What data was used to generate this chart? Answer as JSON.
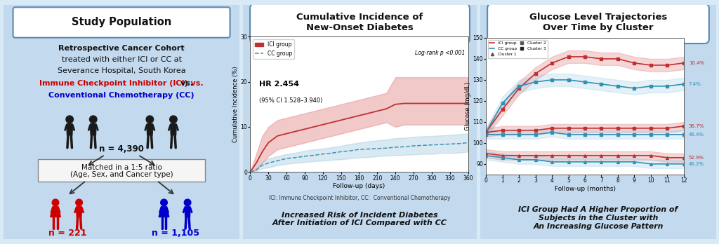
{
  "panel_bg": "#c2d9ee",
  "panel_border": "#7aaac8",
  "title_box_bg": "#ffffff",
  "title_box_border": "#5a8ab0",
  "fig_bg": "#d8eaf6",
  "panel1": {
    "title": "Study Population",
    "line1": "Retrospective Cancer Cohort",
    "line2": "treated with either ICI or CC at",
    "line3": "Severance Hospital, South Korea",
    "ici_label": "Immune Checkpoint Inhibitor (ICI) vs.",
    "cc_label": "Conventional Chemotherapy (CC)",
    "n_total": "n = 4,390",
    "match_line1": "Matched in a 1:5 ratio",
    "match_line2": "(Age, Sex, and Cancer type)",
    "n_ici": "n = 221",
    "n_cc": "n = 1,105",
    "ici_color": "#cc0000",
    "cc_color": "#0000cc",
    "black_color": "#111111"
  },
  "panel2": {
    "title": "Cumulative Incidence of\nNew-Onset Diabetes",
    "xlabel": "Follow-up (days)",
    "ylabel": "Cumulative Incidence (%)",
    "logrank_text": "Log-rank p <0.001",
    "hr_text": "HR 2.454",
    "ci_text": "(95% CI 1.528–3.940)",
    "ici_label": "ICI group",
    "cc_label": "CC group",
    "xticks": [
      0,
      30,
      60,
      90,
      120,
      150,
      180,
      210,
      240,
      270,
      300,
      330,
      360
    ],
    "ylim": [
      0,
      30
    ],
    "yticks": [
      0,
      10,
      20,
      30
    ],
    "ici_x": [
      0,
      10,
      20,
      30,
      45,
      60,
      75,
      90,
      105,
      120,
      135,
      150,
      165,
      180,
      195,
      210,
      225,
      240,
      255,
      270,
      285,
      300,
      315,
      330,
      345,
      360
    ],
    "ici_y": [
      0,
      2,
      4.5,
      6.5,
      8,
      8.5,
      9,
      9.5,
      10,
      10.5,
      11,
      11.5,
      12,
      12.5,
      13,
      13.5,
      14,
      15,
      15.2,
      15.2,
      15.2,
      15.2,
      15.2,
      15.2,
      15.2,
      15.2
    ],
    "ici_lo": [
      0,
      0.5,
      2,
      3.5,
      5,
      5.5,
      6,
      6.5,
      7,
      7.5,
      8,
      8.5,
      9,
      9.5,
      10,
      10.5,
      11,
      10,
      10.5,
      10.5,
      10.5,
      10.5,
      10.5,
      10.5,
      10.5,
      10.5
    ],
    "ici_hi": [
      0,
      4,
      8,
      10,
      11.5,
      12,
      12.5,
      13,
      13.5,
      14,
      14.5,
      15,
      15.5,
      16,
      16.5,
      17,
      17.5,
      21,
      21,
      21,
      21,
      21,
      21,
      21,
      21,
      21
    ],
    "cc_x": [
      0,
      10,
      20,
      30,
      45,
      60,
      75,
      90,
      105,
      120,
      135,
      150,
      165,
      180,
      195,
      210,
      225,
      240,
      255,
      270,
      285,
      300,
      315,
      330,
      345,
      360
    ],
    "cc_y": [
      0,
      0.5,
      1.5,
      2,
      2.5,
      3,
      3.2,
      3.5,
      3.7,
      4,
      4.2,
      4.5,
      4.7,
      5,
      5.1,
      5.2,
      5.3,
      5.5,
      5.6,
      5.8,
      5.9,
      6,
      6.1,
      6.2,
      6.3,
      6.5
    ],
    "cc_lo": [
      0,
      0.2,
      0.8,
      1,
      1.5,
      1.8,
      2,
      2.2,
      2.4,
      2.5,
      2.7,
      2.8,
      3,
      3.2,
      3.3,
      3.5,
      3.6,
      3.7,
      3.8,
      3.9,
      4,
      4,
      4.2,
      4.2,
      4.3,
      4.5
    ],
    "cc_hi": [
      0,
      0.8,
      2.2,
      3,
      3.5,
      4,
      4.3,
      4.7,
      5,
      5.2,
      5.5,
      5.8,
      6.2,
      6.5,
      6.8,
      7,
      7.2,
      7.5,
      7.6,
      7.8,
      7.9,
      8,
      8.1,
      8.2,
      8.4,
      8.5
    ],
    "ici_color": "#e07878",
    "cc_color": "#90c0d8",
    "footnote": "ICI: Immune Checkpoint Inhibitor, CC:  Conventional Chemotherapy",
    "bottom_text": "Increased Risk of Incident Diabetes\nAfter Initiation of ICI Compared with CC"
  },
  "panel3": {
    "title": "Glucose Level Trajectories\nOver Time by Cluster",
    "xlabel": "Follow-up (months)",
    "ylabel": "Glucose (mg/dL)",
    "xticks": [
      0,
      1,
      2,
      3,
      4,
      5,
      6,
      7,
      8,
      9,
      10,
      11,
      12
    ],
    "ylim": [
      85,
      150
    ],
    "yticks": [
      90,
      100,
      110,
      120,
      130,
      140,
      150
    ],
    "x": [
      0,
      1,
      2,
      3,
      4,
      5,
      6,
      7,
      8,
      9,
      10,
      11,
      12
    ],
    "ici_c1_y": [
      105,
      116,
      126,
      133,
      138,
      141,
      141,
      140,
      140,
      138,
      137,
      137,
      138
    ],
    "ici_c1_lo": [
      103,
      113,
      123,
      130,
      135,
      138,
      138,
      137,
      137,
      135,
      134,
      134,
      135
    ],
    "ici_c1_hi": [
      107,
      119,
      129,
      136,
      141,
      144,
      144,
      143,
      143,
      141,
      140,
      140,
      141
    ],
    "cc_c1_y": [
      105,
      119,
      127,
      129,
      130,
      130,
      129,
      128,
      127,
      126,
      127,
      127,
      128
    ],
    "cc_c1_lo": [
      103,
      116,
      124,
      126,
      127,
      127,
      126,
      125,
      124,
      123,
      124,
      124,
      125
    ],
    "cc_c1_hi": [
      107,
      122,
      130,
      132,
      133,
      133,
      132,
      131,
      130,
      129,
      130,
      130,
      131
    ],
    "ici_c2_y": [
      105,
      106,
      106,
      106,
      107,
      107,
      107,
      107,
      107,
      107,
      107,
      107,
      108
    ],
    "ici_c2_lo": [
      103,
      104,
      104,
      104,
      105,
      105,
      105,
      105,
      105,
      105,
      105,
      105,
      106
    ],
    "ici_c2_hi": [
      107,
      108,
      108,
      108,
      109,
      109,
      109,
      109,
      109,
      109,
      109,
      109,
      110
    ],
    "cc_c2_y": [
      104,
      104,
      104,
      104,
      105,
      104,
      104,
      104,
      104,
      104,
      104,
      104,
      104
    ],
    "cc_c2_lo": [
      102,
      102,
      102,
      102,
      103,
      102,
      102,
      102,
      102,
      102,
      102,
      102,
      102
    ],
    "cc_c2_hi": [
      106,
      106,
      106,
      106,
      107,
      106,
      106,
      106,
      106,
      106,
      106,
      106,
      106
    ],
    "ici_c3_y": [
      95,
      94,
      94,
      94,
      94,
      94,
      94,
      94,
      94,
      94,
      94,
      93,
      93
    ],
    "ici_c3_lo": [
      93,
      92,
      92,
      92,
      92,
      92,
      92,
      92,
      92,
      92,
      92,
      91,
      91
    ],
    "ici_c3_hi": [
      97,
      96,
      96,
      96,
      96,
      96,
      96,
      96,
      96,
      96,
      96,
      95,
      95
    ],
    "cc_c3_y": [
      94,
      93,
      92,
      92,
      91,
      91,
      91,
      91,
      91,
      91,
      90,
      90,
      90
    ],
    "cc_c3_lo": [
      92,
      91,
      90,
      90,
      89,
      89,
      89,
      89,
      89,
      89,
      88,
      88,
      88
    ],
    "cc_c3_hi": [
      96,
      95,
      94,
      94,
      93,
      93,
      93,
      93,
      93,
      93,
      92,
      92,
      92
    ],
    "ici_color": "#e07878",
    "cc_color": "#90c8e0",
    "pct_c1_ici": "10.4%",
    "pct_c1_cc": "7.4%",
    "pct_c2_ici": "36.7%",
    "pct_c2_cc": "46.4%",
    "pct_c3_ici": "52.9%",
    "pct_c3_cc": "46.2%",
    "bottom_text": "ICI Group Had A Higher Proportion of\nSubjects in the Cluster with\nAn Increasing Glucose Pattern"
  }
}
